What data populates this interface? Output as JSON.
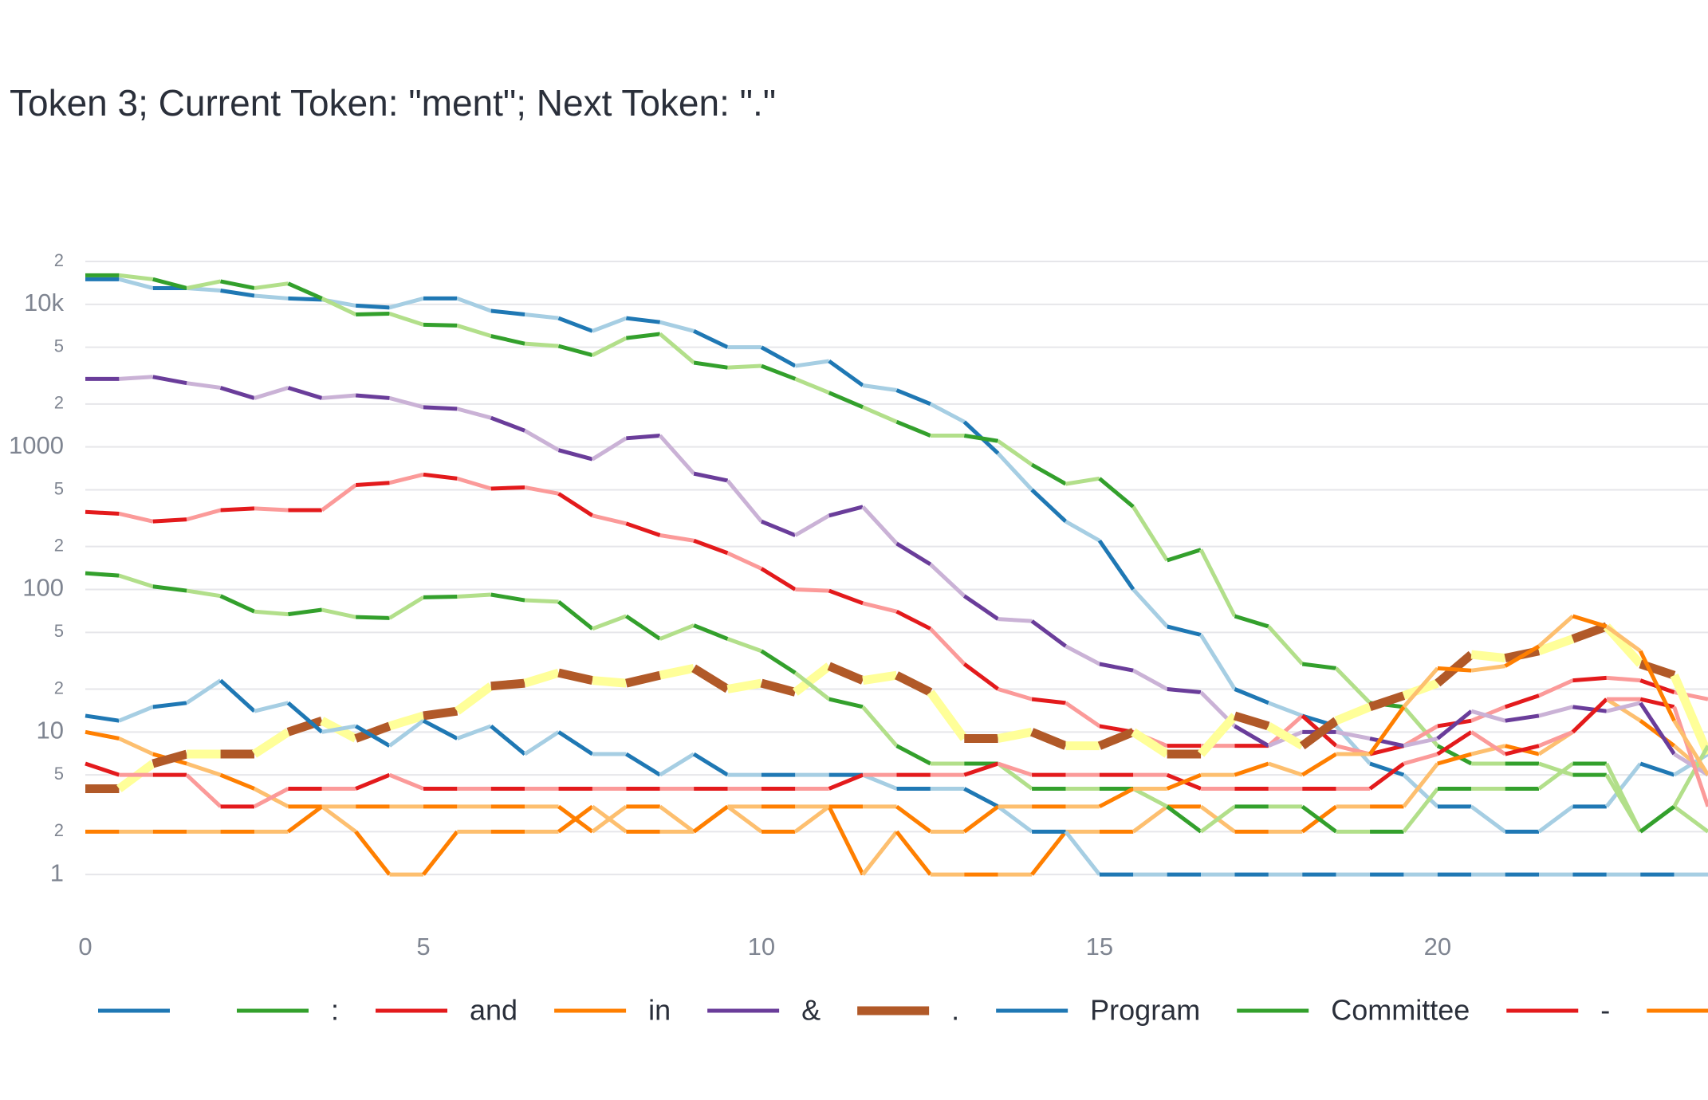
{
  "chart_data": {
    "type": "line",
    "title": "Token 3; Current Token: \"ment\"; Next Token: \".\"",
    "log_y": true,
    "grid": true,
    "x": [
      0,
      0.5,
      1,
      1.5,
      2,
      2.5,
      3,
      3.5,
      4,
      4.5,
      5,
      5.5,
      6,
      6.5,
      7,
      7.5,
      8,
      8.5,
      9,
      9.5,
      10,
      10.5,
      11,
      11.5,
      12,
      12.5,
      13,
      13.5,
      14,
      14.5,
      15,
      15.5,
      16,
      16.5,
      17,
      17.5,
      18,
      18.5,
      19,
      19.5,
      20,
      20.5,
      21,
      21.5,
      22,
      22.5,
      23,
      23.5,
      24
    ],
    "xlim": [
      0,
      24
    ],
    "xticks": [
      0,
      5,
      10,
      15,
      20
    ],
    "ylim": [
      0.5,
      20000
    ],
    "yticks": [
      1,
      2,
      5,
      10,
      {
        "value": 20,
        "label": "2"
      },
      {
        "value": 50,
        "label": "5"
      },
      100,
      {
        "value": 200,
        "label": "2"
      },
      {
        "value": 500,
        "label": "5"
      },
      1000,
      {
        "value": 2000,
        "label": "2"
      },
      {
        "value": 5000,
        "label": "5"
      },
      {
        "value": 10000,
        "label": "10k"
      },
      {
        "value": 20000,
        "label": "2"
      }
    ],
    "series": [
      {
        "name": " ",
        "color": "#1f78b4",
        "alt_color": "#a6cee3",
        "values": [
          15000,
          15000,
          13000,
          13000,
          12500,
          11500,
          11000,
          10800,
          9800,
          9500,
          11000,
          11000,
          9000,
          8500,
          8000,
          6500,
          8000,
          7500,
          6500,
          5000,
          5000,
          3700,
          4000,
          2700,
          2500,
          2000,
          1500,
          900,
          500,
          300,
          220,
          100,
          55,
          48,
          20,
          16,
          13,
          11,
          6,
          5,
          3,
          3,
          2,
          2,
          3,
          3,
          6,
          5,
          7
        ]
      },
      {
        "name": ":",
        "color": "#33a02c",
        "alt_color": "#b2df8a",
        "values": [
          16000,
          16000,
          15000,
          13000,
          14500,
          13000,
          14000,
          11000,
          8500,
          8600,
          7200,
          7100,
          6000,
          5300,
          5100,
          4400,
          5800,
          6200,
          3900,
          3600,
          3700,
          3000,
          2400,
          1900,
          1500,
          1200,
          1200,
          1100,
          750,
          550,
          600,
          380,
          160,
          190,
          65,
          55,
          30,
          28,
          16,
          15,
          8,
          6,
          6,
          6,
          5,
          5,
          2,
          3,
          2
        ]
      },
      {
        "name": "and",
        "color": "#e31a1c",
        "alt_color": "#fb9a99",
        "values": [
          350,
          340,
          300,
          310,
          360,
          370,
          360,
          360,
          540,
          560,
          640,
          600,
          510,
          520,
          470,
          330,
          290,
          240,
          220,
          180,
          140,
          100,
          98,
          80,
          70,
          53,
          30,
          20,
          17,
          16,
          11,
          10,
          8,
          8,
          8,
          8,
          13,
          8,
          7,
          8,
          11,
          12,
          15,
          18,
          23,
          24,
          23,
          19,
          17
        ]
      },
      {
        "name": "in",
        "color": "#ff7f00",
        "alt_color": "#fdbf6f",
        "values": [
          10,
          9,
          7,
          6,
          5,
          4,
          3,
          3,
          2,
          1,
          1,
          2,
          2,
          2,
          2,
          3,
          2,
          2,
          2,
          3,
          2,
          2,
          3,
          1,
          2,
          1,
          1,
          1,
          1,
          2,
          2,
          2,
          3,
          3,
          2,
          2,
          2,
          3,
          3,
          3,
          6,
          7,
          8,
          7,
          10,
          17,
          12,
          8,
          5
        ]
      },
      {
        "name": "&",
        "color": "#6a3d9a",
        "alt_color": "#cab2d6",
        "values": [
          3000,
          3000,
          3100,
          2800,
          2600,
          2200,
          2600,
          2200,
          2300,
          2200,
          1900,
          1850,
          1600,
          1300,
          950,
          820,
          1150,
          1200,
          650,
          580,
          300,
          240,
          330,
          380,
          210,
          150,
          90,
          62,
          60,
          40,
          30,
          27,
          20,
          19,
          11,
          8,
          10,
          10,
          9,
          8,
          9,
          14,
          12,
          13,
          15,
          14,
          16,
          7,
          5
        ]
      },
      {
        "name": ".",
        "color": "#b15928",
        "alt_color": "#ffff99",
        "width": 11,
        "values": [
          4,
          4,
          6,
          7,
          7,
          7,
          10,
          12,
          9,
          11,
          13,
          14,
          21,
          22,
          26,
          23,
          22,
          25,
          28,
          20,
          22,
          19,
          29,
          23,
          25,
          19,
          9,
          9,
          10,
          8,
          8,
          10,
          7,
          7,
          13,
          11,
          8,
          12,
          15,
          18,
          22,
          35,
          33,
          37,
          45,
          55,
          30,
          25,
          7
        ]
      },
      {
        "name": "Program",
        "color": "#1f78b4",
        "alt_color": "#a6cee3",
        "values": [
          13,
          12,
          15,
          16,
          23,
          14,
          16,
          10,
          11,
          8,
          12,
          9,
          11,
          7,
          10,
          7,
          7,
          5,
          7,
          5,
          5,
          5,
          5,
          5,
          4,
          4,
          4,
          3,
          2,
          2,
          1,
          1,
          1,
          1,
          1,
          1,
          1,
          1,
          1,
          1,
          1,
          1,
          1,
          1,
          1,
          1,
          1,
          1,
          1
        ]
      },
      {
        "name": "Committee",
        "color": "#33a02c",
        "alt_color": "#b2df8a",
        "values": [
          130,
          125,
          105,
          98,
          90,
          70,
          67,
          72,
          64,
          63,
          88,
          89,
          92,
          84,
          82,
          53,
          65,
          45,
          56,
          45,
          37,
          26,
          17,
          15,
          8,
          6,
          6,
          6,
          4,
          4,
          4,
          4,
          3,
          2,
          3,
          3,
          3,
          2,
          2,
          2,
          4,
          4,
          4,
          4,
          6,
          6,
          2,
          3,
          8
        ]
      },
      {
        "name": "-",
        "color": "#e31a1c",
        "alt_color": "#fb9a99",
        "values": [
          6,
          5,
          5,
          5,
          3,
          3,
          4,
          4,
          4,
          5,
          4,
          4,
          4,
          4,
          4,
          4,
          4,
          4,
          4,
          4,
          4,
          4,
          4,
          5,
          5,
          5,
          5,
          6,
          5,
          5,
          5,
          5,
          5,
          4,
          4,
          4,
          4,
          4,
          4,
          6,
          7,
          10,
          7,
          8,
          10,
          17,
          17,
          15,
          3
        ]
      },
      {
        "name": ",",
        "color": "#ff7f00",
        "alt_color": "#fdbf6f",
        "values": [
          2,
          2,
          2,
          2,
          2,
          2,
          2,
          3,
          3,
          3,
          3,
          3,
          3,
          3,
          3,
          2,
          3,
          3,
          2,
          3,
          3,
          3,
          3,
          3,
          3,
          2,
          2,
          3,
          3,
          3,
          3,
          4,
          4,
          5,
          5,
          6,
          5,
          7,
          7,
          15,
          28,
          27,
          29,
          40,
          65,
          55,
          37,
          12,
          5
        ]
      }
    ]
  }
}
